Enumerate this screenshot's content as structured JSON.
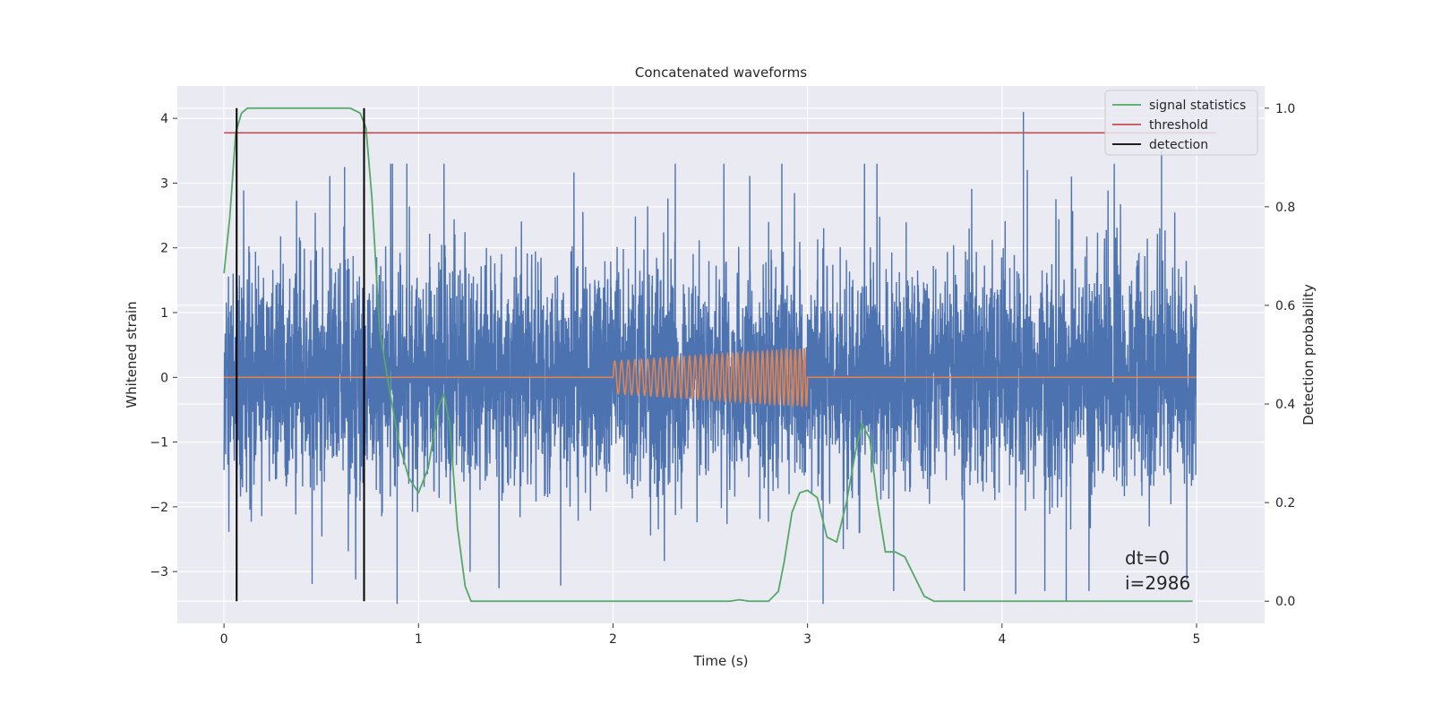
{
  "chart_data": {
    "type": "line",
    "title": "Concatenated waveforms",
    "xlabel": "Time (s)",
    "ylabel": "Whitened strain",
    "ylabel_right": "Detection probability",
    "xlim": [
      -0.24,
      5.35
    ],
    "ylim": [
      -3.8,
      4.5
    ],
    "ylim_right": [
      -0.045,
      1.045
    ],
    "xticks": [
      0,
      1,
      2,
      3,
      4,
      5
    ],
    "yticks": [
      -3,
      -2,
      -1,
      0,
      1,
      2,
      3,
      4
    ],
    "yticks_right": [
      0.0,
      0.2,
      0.4,
      0.6,
      0.8,
      1.0
    ],
    "xtick_labels": [
      "0",
      "1",
      "2",
      "3",
      "4",
      "5"
    ],
    "ytick_labels": [
      "−3",
      "−2",
      "−1",
      "0",
      "1",
      "2",
      "3",
      "4"
    ],
    "ytick_right_labels": [
      "0.0",
      "0.2",
      "0.4",
      "0.6",
      "0.8",
      "1.0"
    ],
    "grid": true,
    "legend_position": "top-right",
    "series": [
      {
        "name": "",
        "axis": "left",
        "color": "#4c72b0",
        "style": "dense noise",
        "x_range": [
          0,
          5
        ],
        "amplitude_std": 1.0,
        "spikes": [
          [
            4.11,
            4.1
          ],
          [
            4.82,
            3.5
          ],
          [
            0.94,
            3.3
          ],
          [
            0.62,
            3.25
          ],
          [
            0.89,
            -3.5
          ],
          [
            3.08,
            -3.5
          ],
          [
            4.33,
            -3.45
          ],
          [
            4.07,
            -3.35
          ]
        ]
      },
      {
        "name": "",
        "axis": "left",
        "color": "#dd8452",
        "style": "injected chirp",
        "x": [
          0,
          2,
          2,
          3,
          3,
          5
        ],
        "y": [
          0,
          0,
          0.25,
          0.45,
          0,
          0
        ]
      },
      {
        "name": "signal statistics",
        "axis": "right",
        "color": "#55a868",
        "x": [
          0,
          0.03,
          0.06,
          0.09,
          0.12,
          0.15,
          0.2,
          0.3,
          0.5,
          0.65,
          0.7,
          0.73,
          0.76,
          0.8,
          0.85,
          0.9,
          0.95,
          1.0,
          1.05,
          1.1,
          1.13,
          1.16,
          1.2,
          1.24,
          1.27,
          1.3,
          2.0,
          2.6,
          2.65,
          2.7,
          2.8,
          2.85,
          2.88,
          2.92,
          2.96,
          3.0,
          3.05,
          3.1,
          3.15,
          3.2,
          3.25,
          3.28,
          3.32,
          3.36,
          3.4,
          3.45,
          3.5,
          3.55,
          3.6,
          3.65,
          3.7,
          4.98
        ],
        "y": [
          0.665,
          0.78,
          0.95,
          0.99,
          1.0,
          1.0,
          1.0,
          1.0,
          1.0,
          1.0,
          0.99,
          0.96,
          0.82,
          0.55,
          0.43,
          0.32,
          0.25,
          0.22,
          0.27,
          0.39,
          0.42,
          0.36,
          0.15,
          0.03,
          0.0,
          0.0,
          0.0,
          0.0,
          0.003,
          0.0,
          0.0,
          0.02,
          0.08,
          0.18,
          0.22,
          0.225,
          0.21,
          0.13,
          0.12,
          0.2,
          0.31,
          0.36,
          0.33,
          0.2,
          0.1,
          0.1,
          0.09,
          0.05,
          0.01,
          0.0,
          0.0,
          0.0
        ]
      },
      {
        "name": "threshold",
        "axis": "right",
        "color": "#c44e52",
        "x": [
          0,
          5.1
        ],
        "y": [
          0.95,
          0.95
        ]
      },
      {
        "name": "detection",
        "axis": "right",
        "color": "#000000",
        "verticals_x": [
          0.065,
          0.72
        ],
        "y_span": [
          0,
          1.0
        ]
      }
    ],
    "annotations": [
      "dt=0",
      "i=2986"
    ]
  }
}
